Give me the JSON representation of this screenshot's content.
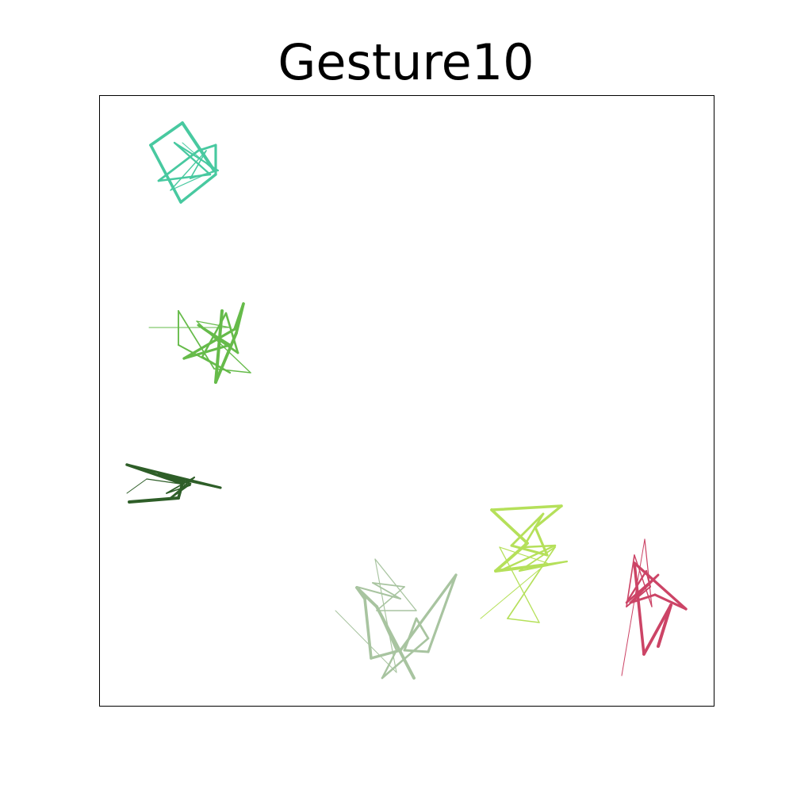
{
  "chart_data": {
    "type": "line",
    "title": "Gesture10",
    "xlim": [
      0,
      775
    ],
    "ylim": [
      0,
      770
    ],
    "series": [
      {
        "color": "#48c9a0",
        "x": [
          105,
          145,
          90,
          135,
          115,
          150,
          95,
          140,
          75,
          125,
          147,
          147,
          103,
          65,
          105,
          145
        ],
        "values": [
          710,
          675,
          650,
          700,
          665,
          675,
          710,
          670,
          662,
          700,
          707,
          670,
          635,
          707,
          735,
          675
        ]
      },
      {
        "color": "#66bb4a",
        "x": [
          63,
          165,
          123,
          191,
          145,
          100,
          100,
          165,
          130,
          160,
          175,
          125,
          165,
          107,
          171,
          182,
          173,
          147,
          155
        ],
        "values": [
          477,
          477,
          485,
          420,
          425,
          498,
          455,
          420,
          440,
          495,
          445,
          480,
          455,
          438,
          475,
          507,
          470,
          408,
          498
        ]
      },
      {
        "color": "#2e5e28",
        "x": [
          35,
          60,
          115,
          85,
          120,
          90,
          115,
          75,
          153,
          35,
          105,
          100,
          38
        ],
        "values": [
          268,
          286,
          278,
          268,
          288,
          262,
          280,
          292,
          275,
          304,
          280,
          262,
          257
        ]
      },
      {
        "color": "#a8c4a0",
        "x": [
          298,
          375,
          348,
          400,
          350,
          385,
          345,
          380,
          325,
          350,
          375,
          357,
          415,
          400,
          385,
          415,
          450,
          380,
          343,
          335,
          325,
          350,
          397
        ],
        "values": [
          120,
          42,
          185,
          120,
          120,
          150,
          155,
          135,
          150,
          125,
          70,
          35,
          85,
          110,
          70,
          68,
          165,
          70,
          60,
          135,
          149,
          125,
          35
        ]
      },
      {
        "color": "#b5e05a",
        "x": [
          481,
          565,
          505,
          555,
          515,
          575,
          530,
          590,
          505,
          575,
          535,
          560,
          520,
          565,
          550,
          583,
          495,
          540,
          500,
          565
        ],
        "values": [
          110,
          180,
          200,
          105,
          110,
          200,
          170,
          182,
          170,
          202,
          200,
          242,
          202,
          190,
          225,
          252,
          247,
          205,
          170,
          178
        ]
      },
      {
        "color": "#cc4466",
        "x": [
          659,
          688,
          697,
          675,
          665,
          695,
          690,
          665,
          705,
          670,
          701,
          740,
          675,
          687,
          721,
          705
        ],
        "values": [
          38,
          210,
          125,
          190,
          125,
          150,
          170,
          130,
          165,
          130,
          140,
          122,
          180,
          65,
          127,
          75
        ]
      }
    ]
  }
}
